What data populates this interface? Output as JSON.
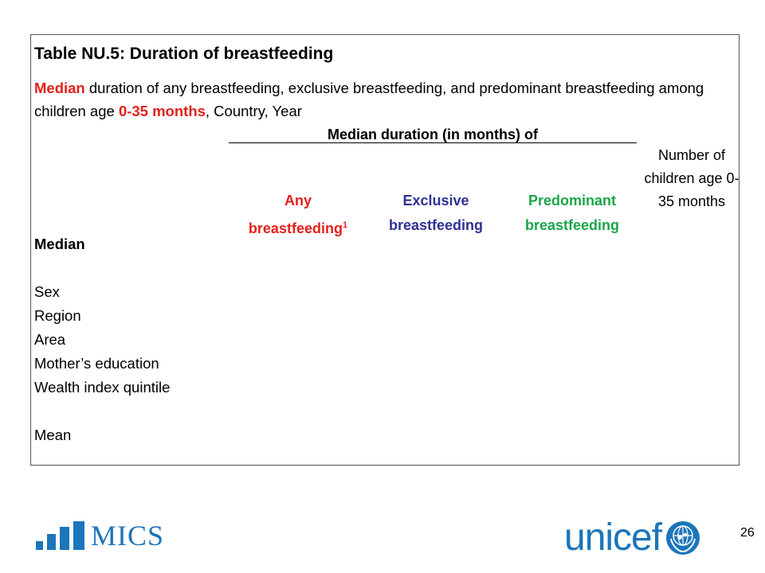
{
  "table": {
    "title": "Table NU.5: Duration of breastfeeding",
    "subtitle": {
      "lead": "Median",
      "text1": " duration of any breastfeeding, exclusive breastfeeding, and predominant breastfeeding among children age ",
      "age": "0-35 months",
      "text2": ", Country, Year"
    },
    "group_header": "Median duration (in months) of",
    "columns": {
      "any_line1": "Any",
      "any_line2": "breastfeeding",
      "any_sup": "1",
      "exclusive_line1": "Exclusive",
      "exclusive_line2": "breastfeeding",
      "predominant_line1": "Predominant",
      "predominant_line2": "breastfeeding",
      "number_of_children": "Number of children age 0-35 months"
    },
    "rows": {
      "median": "Median",
      "sex": "Sex",
      "region": "Region",
      "area": "Area",
      "mothers_education": "Mother’s education",
      "wealth_index": "Wealth index quintile",
      "mean": "Mean"
    },
    "colors": {
      "any": "#e2211c",
      "exclusive": "#2e3192",
      "predominant": "#1aa64a",
      "brand_blue": "#1b75bb"
    }
  },
  "footer": {
    "mics_logo": "MICS",
    "unicef_logo": "unicef",
    "unicef_emblem": "unicef-emblem-icon",
    "page_number": "26"
  }
}
